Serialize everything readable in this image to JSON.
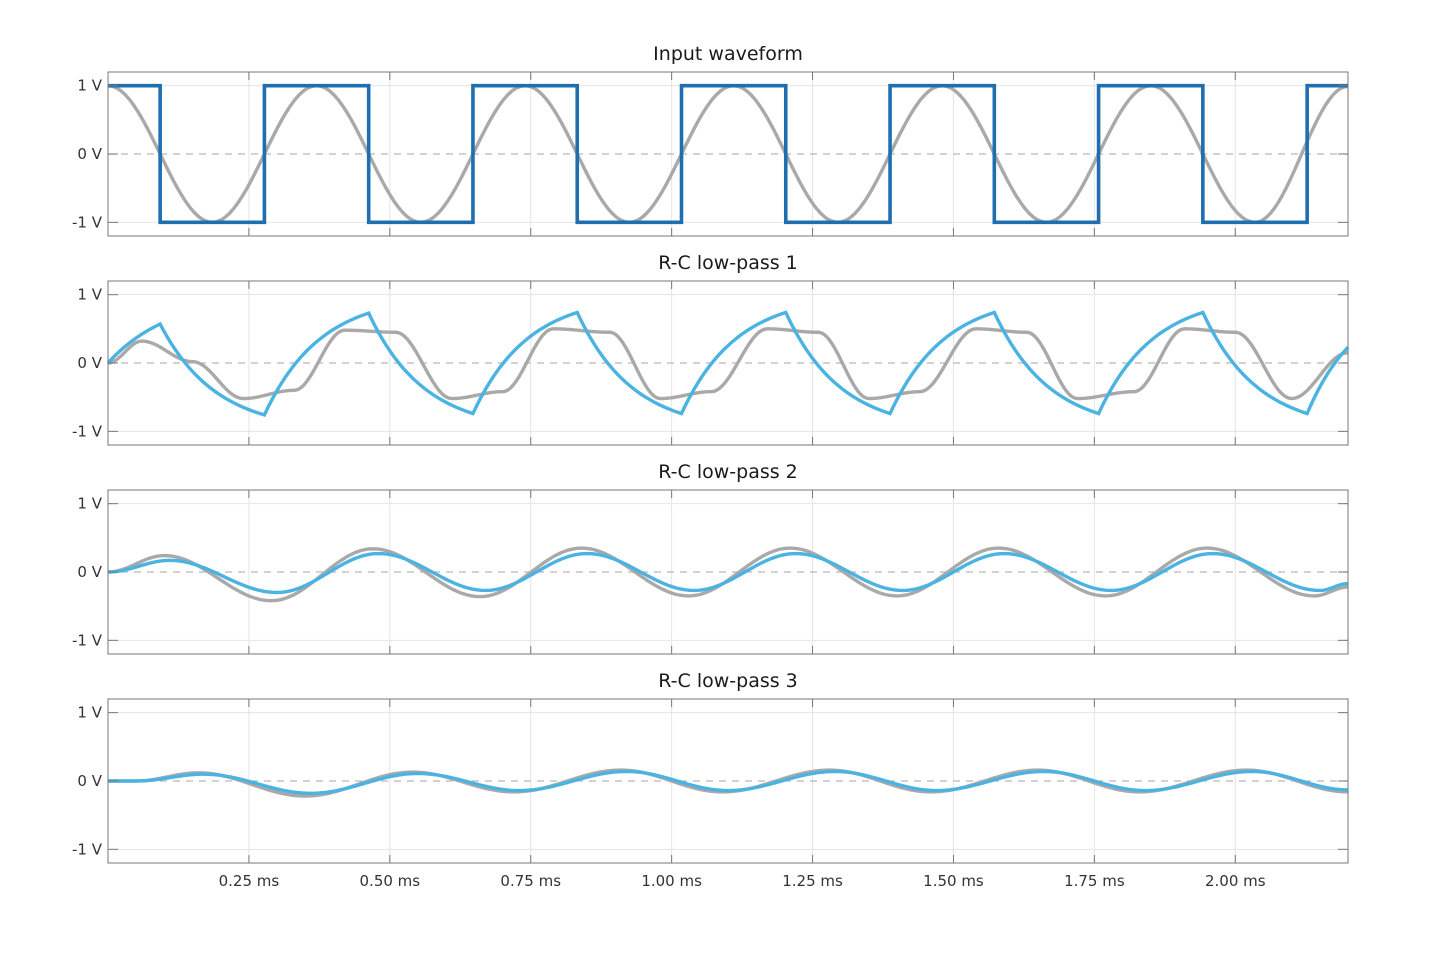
{
  "chart_data": [
    {
      "type": "line",
      "title": "Input waveform",
      "xlabel": "",
      "ylabel": "",
      "xlim": [
        0,
        2.2
      ],
      "ylim": [
        -1.2,
        1.2
      ],
      "x_unit": "ms",
      "grid": true,
      "x_ticks": [
        {
          "value": 0.25,
          "label": "0.25 ms"
        },
        {
          "value": 0.5,
          "label": "0.50 ms"
        },
        {
          "value": 0.75,
          "label": "0.75 ms"
        },
        {
          "value": 1.0,
          "label": "1.00 ms"
        },
        {
          "value": 1.25,
          "label": "1.25 ms"
        },
        {
          "value": 1.5,
          "label": "1.50 ms"
        },
        {
          "value": 1.75,
          "label": "1.75 ms"
        },
        {
          "value": 2.0,
          "label": "2.00 ms"
        }
      ],
      "y_ticks": [
        {
          "value": 1,
          "label": "1 V"
        },
        {
          "value": 0,
          "label": "0 V"
        },
        {
          "value": -1,
          "label": "-1 V"
        }
      ],
      "series": [
        {
          "color": "#a9a9a9",
          "x": [
            0,
            0.185,
            0.37,
            0.555,
            0.74,
            0.925,
            1.11,
            1.295,
            1.48,
            1.665,
            1.85,
            2.035,
            2.2
          ],
          "y": [
            1,
            -1,
            1,
            -1,
            1,
            -1,
            1,
            -1,
            1,
            -1,
            1,
            -1,
            0.99
          ],
          "shape": "cosine through listed extrema"
        },
        {
          "color": "#1f6fb0",
          "x": [
            0,
            0.0925,
            0.0925,
            0.2775,
            0.2775,
            0.4625,
            0.4625,
            0.6475,
            0.6475,
            0.8325,
            0.8325,
            1.0175,
            1.0175,
            1.2025,
            1.2025,
            1.3875,
            1.3875,
            1.5725,
            1.5725,
            1.7575,
            1.7575,
            1.9425,
            1.9425,
            2.1275,
            2.1275,
            2.2
          ],
          "y": [
            1,
            1,
            -1,
            -1,
            1,
            1,
            -1,
            -1,
            1,
            1,
            -1,
            -1,
            1,
            1,
            -1,
            -1,
            1,
            1,
            -1,
            -1,
            1,
            1,
            -1,
            -1,
            1,
            1
          ]
        }
      ]
    },
    {
      "type": "line",
      "title": "R-C low-pass 1",
      "xlabel": "",
      "ylabel": "",
      "xlim": [
        0,
        2.2
      ],
      "ylim": [
        -1.2,
        1.2
      ],
      "grid": true,
      "y_ticks": [
        {
          "value": 1,
          "label": "1 V"
        },
        {
          "value": 0,
          "label": "0 V"
        },
        {
          "value": -1,
          "label": "-1 V"
        }
      ],
      "series": [
        {
          "color": "#a9a9a9",
          "x": [
            0,
            0.06,
            0.15,
            0.24,
            0.33,
            0.42,
            0.51,
            0.61,
            0.7,
            0.79,
            0.89,
            0.98,
            1.07,
            1.17,
            1.26,
            1.35,
            1.44,
            1.54,
            1.63,
            1.72,
            1.82,
            1.91,
            2.0,
            2.1,
            2.2
          ],
          "y": [
            0,
            0.32,
            0.02,
            -0.52,
            -0.4,
            0.48,
            0.45,
            -0.52,
            -0.42,
            0.5,
            0.45,
            -0.52,
            -0.42,
            0.5,
            0.45,
            -0.52,
            -0.42,
            0.5,
            0.45,
            -0.52,
            -0.42,
            0.5,
            0.45,
            -0.52,
            0.15
          ]
        },
        {
          "color": "#4ab3e2",
          "x": [
            0,
            0.0925,
            0.2775,
            0.4625,
            0.6475,
            0.8325,
            1.0175,
            1.2025,
            1.3875,
            1.5725,
            1.7575,
            1.9425,
            2.1275,
            2.2
          ],
          "y": [
            0,
            0.57,
            -0.76,
            0.73,
            -0.74,
            0.74,
            -0.74,
            0.74,
            -0.74,
            0.74,
            -0.74,
            0.74,
            -0.74,
            0.23
          ],
          "shape": "exponential charge/discharge between listed corner points"
        }
      ]
    },
    {
      "type": "line",
      "title": "R-C low-pass 2",
      "xlabel": "",
      "ylabel": "",
      "xlim": [
        0,
        2.2
      ],
      "ylim": [
        -1.2,
        1.2
      ],
      "grid": true,
      "y_ticks": [
        {
          "value": 1,
          "label": "1 V"
        },
        {
          "value": 0,
          "label": "0 V"
        },
        {
          "value": -1,
          "label": "-1 V"
        }
      ],
      "series": [
        {
          "color": "#a9a9a9",
          "x": [
            0,
            0.1,
            0.29,
            0.47,
            0.66,
            0.84,
            1.03,
            1.21,
            1.4,
            1.58,
            1.77,
            1.95,
            2.14,
            2.2
          ],
          "y": [
            0,
            0.24,
            -0.42,
            0.34,
            -0.36,
            0.35,
            -0.35,
            0.35,
            -0.35,
            0.35,
            -0.35,
            0.35,
            -0.35,
            -0.22
          ]
        },
        {
          "color": "#4ab3e2",
          "x": [
            0,
            0.11,
            0.3,
            0.48,
            0.67,
            0.85,
            1.04,
            1.22,
            1.41,
            1.59,
            1.78,
            1.96,
            2.15,
            2.2
          ],
          "y": [
            0,
            0.17,
            -0.3,
            0.27,
            -0.27,
            0.27,
            -0.27,
            0.27,
            -0.27,
            0.27,
            -0.27,
            0.27,
            -0.27,
            -0.17
          ]
        }
      ]
    },
    {
      "type": "line",
      "title": "R-C low-pass 3",
      "xlabel": "",
      "ylabel": "",
      "xlim": [
        0,
        2.2
      ],
      "ylim": [
        -1.2,
        1.2
      ],
      "grid": true,
      "y_ticks": [
        {
          "value": 1,
          "label": "1 V"
        },
        {
          "value": 0,
          "label": "0 V"
        },
        {
          "value": -1,
          "label": "-1 V"
        }
      ],
      "series": [
        {
          "color": "#a9a9a9",
          "x": [
            0,
            0.05,
            0.16,
            0.35,
            0.54,
            0.72,
            0.91,
            1.09,
            1.28,
            1.46,
            1.65,
            1.83,
            2.02,
            2.2
          ],
          "y": [
            0,
            0.0,
            0.12,
            -0.22,
            0.13,
            -0.16,
            0.16,
            -0.16,
            0.16,
            -0.16,
            0.16,
            -0.16,
            0.16,
            -0.16
          ]
        },
        {
          "color": "#4ab3e2",
          "x": [
            0,
            0.05,
            0.17,
            0.36,
            0.55,
            0.73,
            0.92,
            1.1,
            1.29,
            1.47,
            1.66,
            1.84,
            2.03,
            2.2
          ],
          "y": [
            0,
            0.0,
            0.1,
            -0.18,
            0.11,
            -0.14,
            0.14,
            -0.14,
            0.14,
            -0.14,
            0.14,
            -0.14,
            0.14,
            -0.13
          ]
        }
      ]
    }
  ]
}
